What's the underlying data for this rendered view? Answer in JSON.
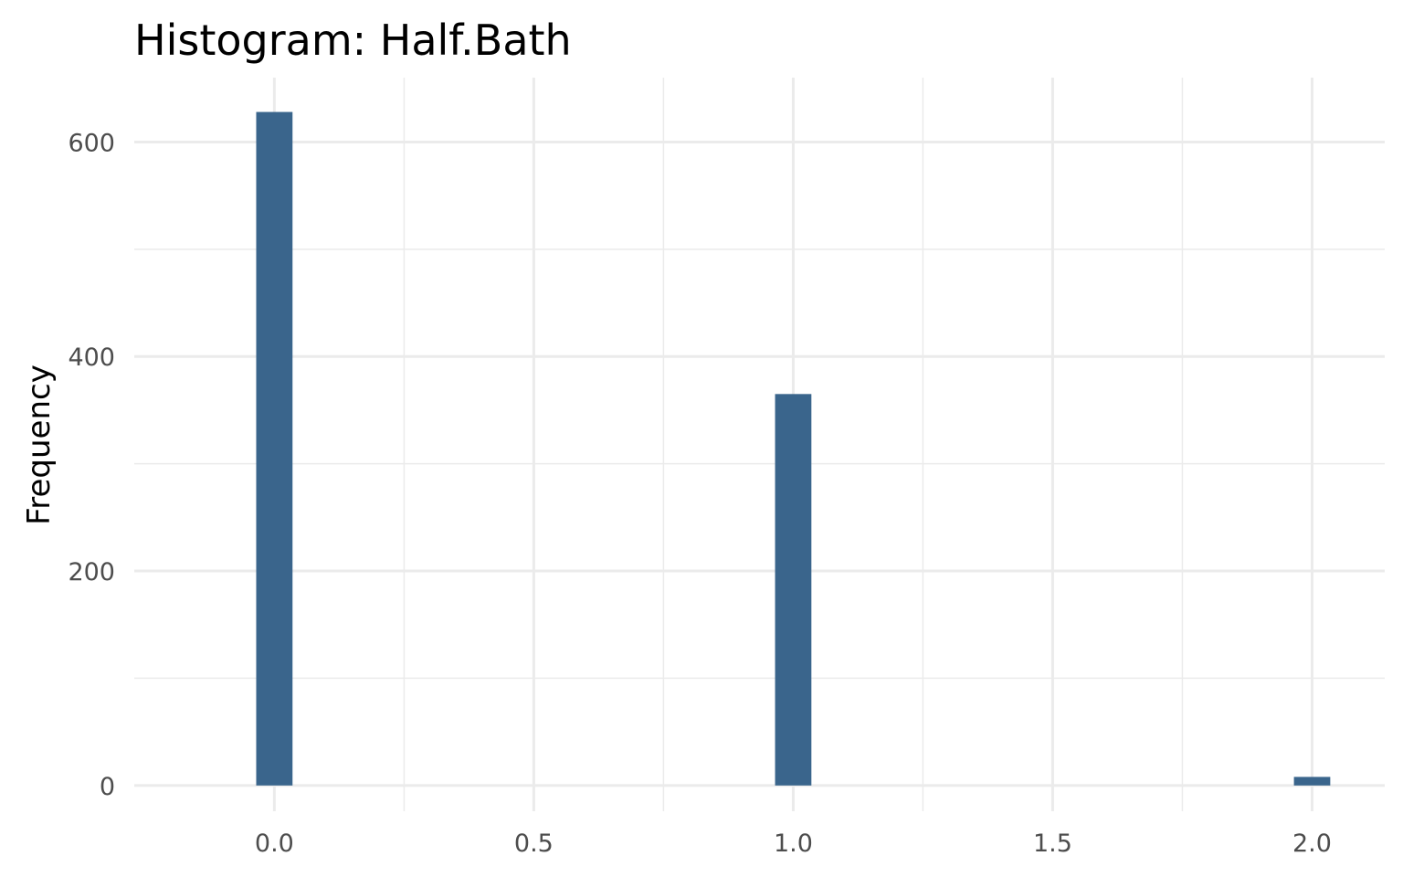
{
  "chart_data": {
    "type": "bar",
    "title": "Histogram:  Half.Bath",
    "xlabel": "",
    "ylabel": "Frequency",
    "x": [
      0.0,
      1.0,
      2.0
    ],
    "values": [
      628,
      365,
      8
    ],
    "bar_color": "#3a658c",
    "xlim": [
      -0.27,
      2.14
    ],
    "ylim": [
      -24,
      660
    ],
    "xticks": [
      0.0,
      0.5,
      1.0,
      1.5,
      2.0
    ],
    "xtick_labels": [
      "0.0",
      "0.5",
      "1.0",
      "1.5",
      "2.0"
    ],
    "yticks": [
      0,
      200,
      400,
      600
    ],
    "ytick_labels": [
      "0",
      "200",
      "400",
      "600"
    ],
    "bin_width": 0.07,
    "grid": true,
    "legend": "none"
  }
}
